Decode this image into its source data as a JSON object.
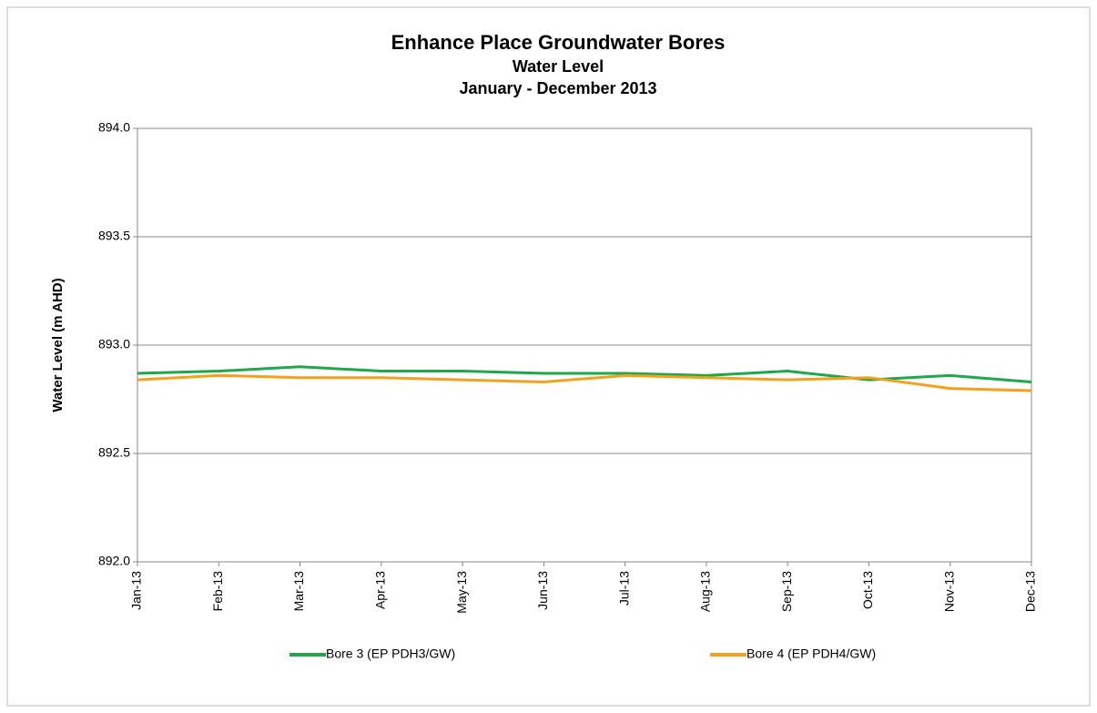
{
  "chart_data": {
    "type": "line",
    "title": "Enhance Place Groundwater Bores",
    "subtitle": [
      "Water Level",
      "January - December 2013"
    ],
    "y_label": "Water Level (m AHD)",
    "categories": [
      "Jan-13",
      "Feb-13",
      "Mar-13",
      "Apr-13",
      "May-13",
      "Jun-13",
      "Jul-13",
      "Aug-13",
      "Sep-13",
      "Oct-13",
      "Nov-13",
      "Dec-13"
    ],
    "series": [
      {
        "name": "Bore 3 (EP PDH3/GW)",
        "color": "#1ea84b",
        "values": [
          892.87,
          892.88,
          892.9,
          892.88,
          892.88,
          892.87,
          892.87,
          892.86,
          892.88,
          892.84,
          892.86,
          892.83
        ]
      },
      {
        "name": "Bore 4 (EP PDH4/GW)",
        "color": "#f5a01a",
        "values": [
          892.84,
          892.86,
          892.85,
          892.85,
          892.84,
          892.83,
          892.86,
          892.85,
          892.84,
          892.85,
          892.8,
          892.79
        ]
      }
    ],
    "ylim": [
      892,
      894
    ],
    "yticks": [
      {
        "value": 892,
        "label": "892.0"
      },
      892.5,
      {
        "value": 893,
        "label": "893.0"
      },
      893.5,
      {
        "value": 894,
        "label": "894.0"
      }
    ],
    "grid": true,
    "legend": "bottom"
  }
}
